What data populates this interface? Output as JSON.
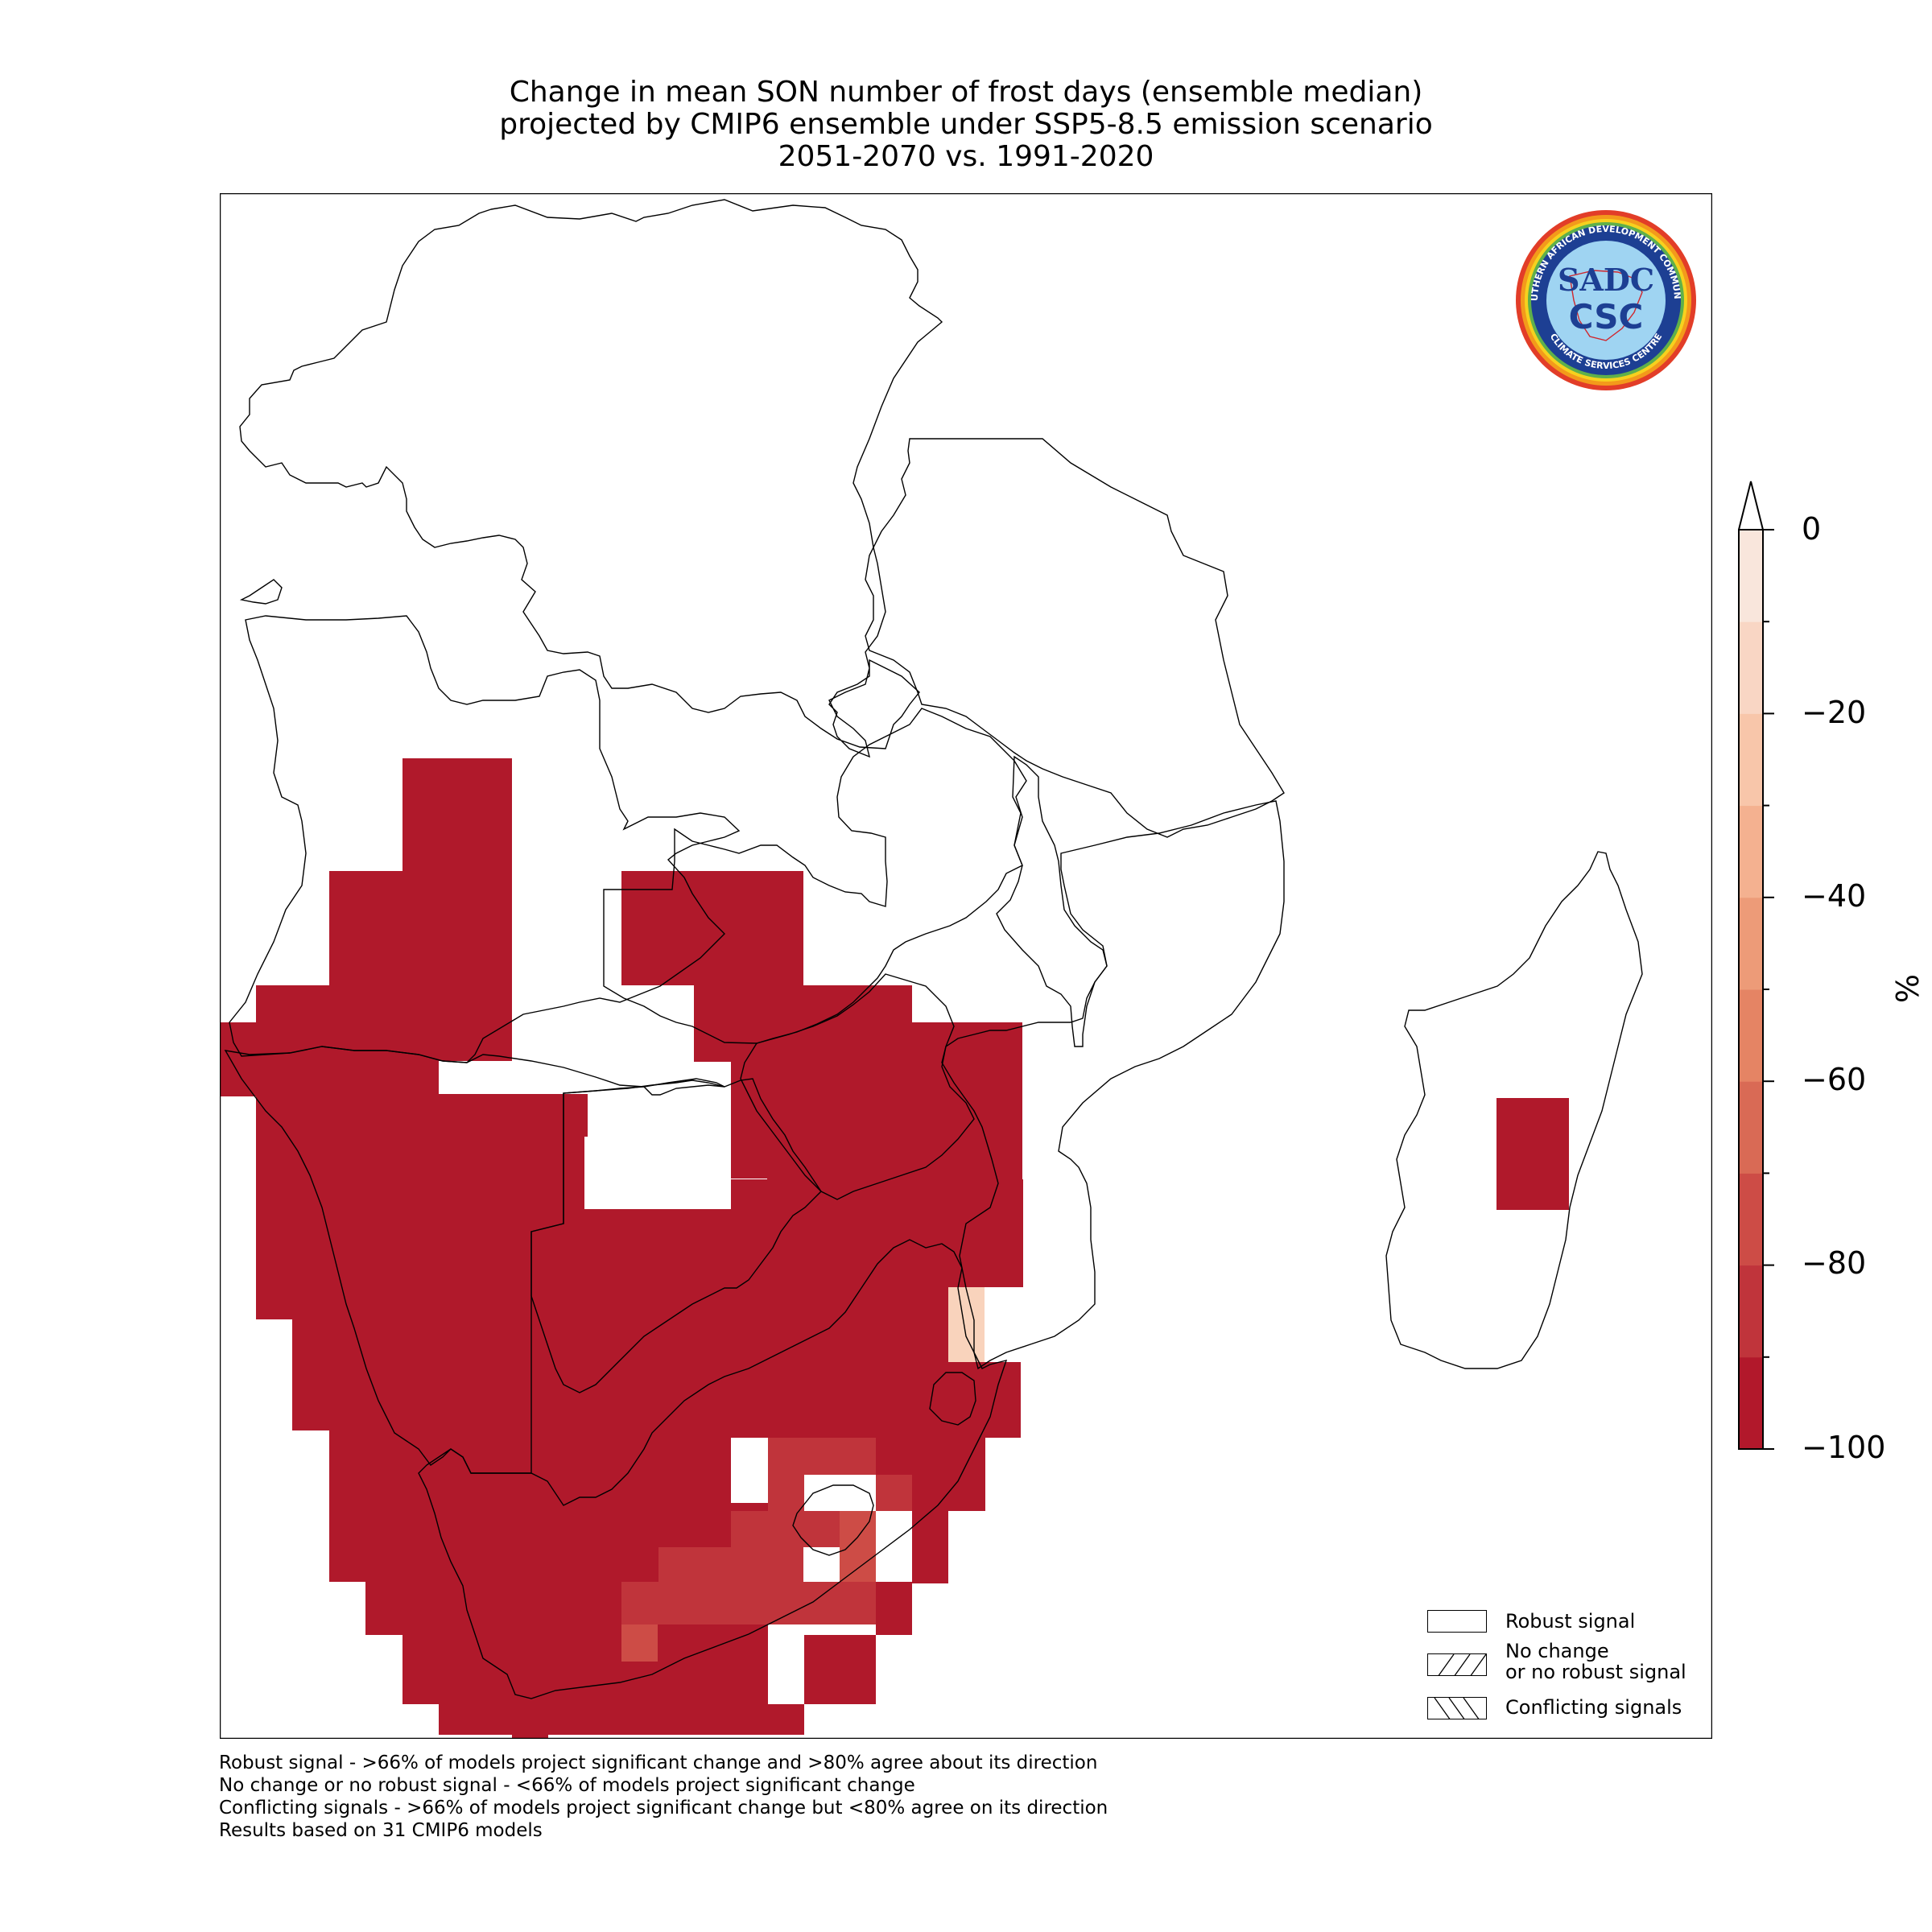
{
  "title": {
    "line1": "Change in mean SON number of frost days (ensemble median)",
    "line2": "projected by CMIP6 ensemble under SSP5-8.5 emission scenario",
    "line3": "2051-2070 vs. 1991-2020"
  },
  "colorbar": {
    "unit": "%",
    "ticks": [
      "0",
      "−20",
      "−40",
      "−60",
      "−80",
      "−100"
    ],
    "range": [
      -100,
      0
    ],
    "extend": "max",
    "colors": [
      "#b2182b",
      "#c0343b",
      "#cd4c46",
      "#d96a55",
      "#e58464",
      "#ed9b78",
      "#f4b190",
      "#f8c6aa",
      "#f9d6c4",
      "#f9e6dc",
      "#f8f0ec"
    ]
  },
  "legend": {
    "robust": "Robust signal",
    "no_change_line1": "No change",
    "no_change_line2": "or no robust signal",
    "conflicting": "Conflicting signals"
  },
  "footnotes": {
    "line1": "Robust signal - >66% of models project significant change and >80% agree about its direction",
    "line2": "No change or no robust signal - <66% of models project significant change",
    "line3": "Conflicting signals - >66% of models project significant change but <80% agree on its direction",
    "line4": "Results based on 31 CMIP6 models"
  },
  "logo": {
    "top_text": "SOUTHERN AFRICAN DEVELOPMENT COMMUNITY",
    "bottom_text": "CLIMATE SERVICES CENTRE",
    "sadc": "SADC",
    "csc": "CSC"
  },
  "map_data": {
    "dominant_value": -100,
    "secondary_values": [
      -90,
      -80,
      -20
    ],
    "colors": {
      "strong": "#b0192b",
      "medium": "#c0343b",
      "light_red": "#cd4c46",
      "peach": "#f9d3bc"
    }
  }
}
